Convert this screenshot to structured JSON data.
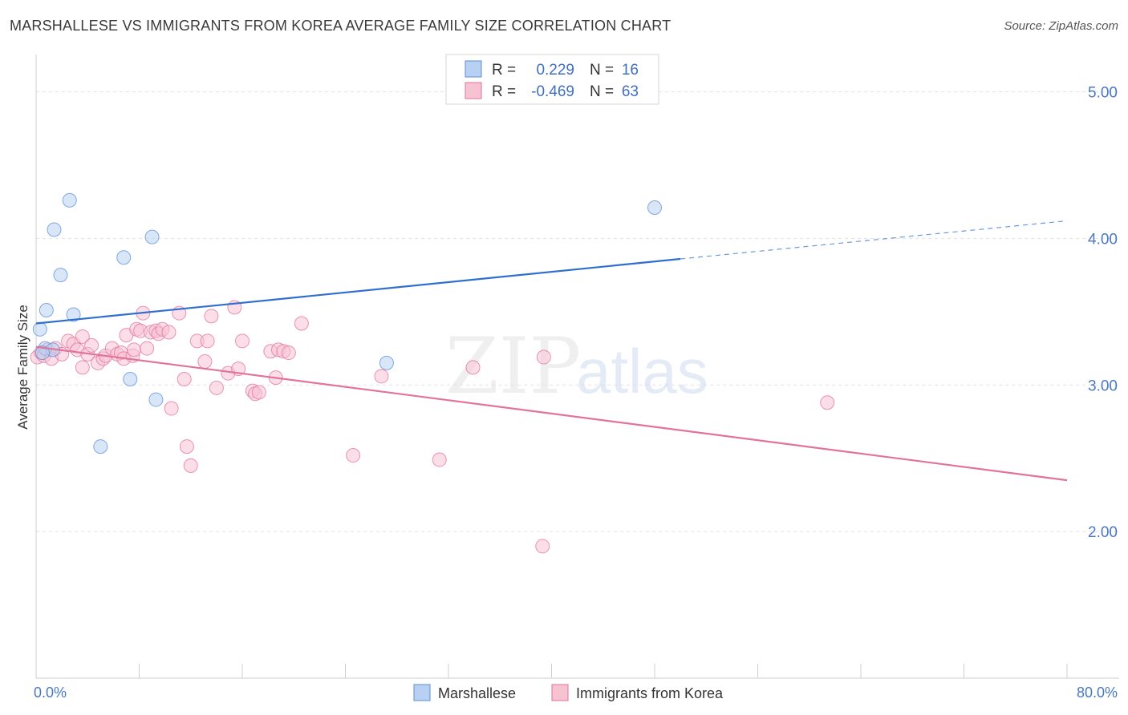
{
  "header": {
    "title": "MARSHALLESE VS IMMIGRANTS FROM KOREA AVERAGE FAMILY SIZE CORRELATION CHART",
    "source": "Source: ZipAtlas.com"
  },
  "watermark": {
    "zip": "ZIP",
    "atlas": "atlas"
  },
  "chart_data": {
    "type": "scatter",
    "ylabel": "Average Family Size",
    "xlim": [
      0,
      80
    ],
    "ylim": [
      1.0,
      5.2
    ],
    "x_tick_labels": [
      {
        "value": 0,
        "label": "0.0%"
      },
      {
        "value": 80,
        "label": "80.0%"
      }
    ],
    "y_tick_labels": [
      {
        "value": 2.0,
        "label": "2.00"
      },
      {
        "value": 3.0,
        "label": "3.00"
      },
      {
        "value": 4.0,
        "label": "4.00"
      },
      {
        "value": 5.0,
        "label": "5.00"
      }
    ],
    "legend_stats": [
      {
        "r_label": "R =",
        "r_value": "0.229",
        "n_label": "N =",
        "n_value": "16",
        "color": "#5b8fd9",
        "fill": "#b8d1f3"
      },
      {
        "r_label": "R =",
        "r_value": "-0.469",
        "n_label": "N =",
        "n_value": "63",
        "color": "#e2739a",
        "fill": "#f7c3d3"
      }
    ],
    "series": [
      {
        "name": "Marshallese",
        "color": "#5b8fd9",
        "fill": "#b8d1f3",
        "trend": {
          "x0": 0,
          "y0": 3.42,
          "x1": 50,
          "y1": 3.86,
          "dash_x1": 80,
          "dash_y1": 4.12
        },
        "points": [
          [
            0.3,
            3.38
          ],
          [
            0.8,
            3.51
          ],
          [
            0.7,
            3.25
          ],
          [
            1.3,
            3.24
          ],
          [
            1.4,
            4.06
          ],
          [
            1.9,
            3.75
          ],
          [
            2.6,
            4.26
          ],
          [
            2.9,
            3.48
          ],
          [
            5.0,
            2.58
          ],
          [
            6.8,
            3.87
          ],
          [
            7.3,
            3.04
          ],
          [
            9.0,
            4.01
          ],
          [
            9.3,
            2.9
          ],
          [
            27.2,
            3.15
          ],
          [
            48.0,
            4.21
          ],
          [
            0.5,
            3.22
          ]
        ]
      },
      {
        "name": "Immigrants from Korea",
        "color": "#e2739a",
        "fill": "#f7c3d3",
        "trend": {
          "x0": 0,
          "y0": 3.26,
          "x1": 80,
          "y1": 2.35
        },
        "points": [
          [
            0.1,
            3.19
          ],
          [
            0.4,
            3.22
          ],
          [
            0.6,
            3.2
          ],
          [
            0.9,
            3.24
          ],
          [
            1.2,
            3.18
          ],
          [
            1.5,
            3.25
          ],
          [
            2.0,
            3.21
          ],
          [
            2.5,
            3.3
          ],
          [
            2.9,
            3.28
          ],
          [
            3.2,
            3.24
          ],
          [
            3.6,
            3.33
          ],
          [
            3.6,
            3.12
          ],
          [
            4.0,
            3.21
          ],
          [
            4.3,
            3.27
          ],
          [
            4.8,
            3.15
          ],
          [
            5.2,
            3.18
          ],
          [
            5.4,
            3.2
          ],
          [
            5.9,
            3.25
          ],
          [
            6.3,
            3.21
          ],
          [
            6.6,
            3.22
          ],
          [
            6.8,
            3.18
          ],
          [
            7.0,
            3.34
          ],
          [
            7.5,
            3.2
          ],
          [
            7.6,
            3.24
          ],
          [
            7.8,
            3.38
          ],
          [
            8.1,
            3.37
          ],
          [
            8.3,
            3.49
          ],
          [
            8.6,
            3.25
          ],
          [
            8.9,
            3.36
          ],
          [
            9.3,
            3.37
          ],
          [
            9.5,
            3.35
          ],
          [
            9.8,
            3.38
          ],
          [
            10.3,
            3.36
          ],
          [
            10.5,
            2.84
          ],
          [
            11.1,
            3.49
          ],
          [
            11.5,
            3.04
          ],
          [
            11.7,
            2.58
          ],
          [
            12.0,
            2.45
          ],
          [
            12.5,
            3.3
          ],
          [
            13.1,
            3.16
          ],
          [
            13.3,
            3.3
          ],
          [
            13.6,
            3.47
          ],
          [
            14.0,
            2.98
          ],
          [
            14.9,
            3.08
          ],
          [
            15.4,
            3.53
          ],
          [
            15.7,
            3.11
          ],
          [
            16.0,
            3.3
          ],
          [
            16.8,
            2.96
          ],
          [
            17.0,
            2.94
          ],
          [
            17.3,
            2.95
          ],
          [
            18.2,
            3.23
          ],
          [
            18.6,
            3.05
          ],
          [
            18.8,
            3.24
          ],
          [
            19.2,
            3.23
          ],
          [
            19.6,
            3.22
          ],
          [
            20.6,
            3.42
          ],
          [
            24.6,
            2.52
          ],
          [
            26.8,
            3.06
          ],
          [
            31.3,
            2.49
          ],
          [
            33.9,
            3.12
          ],
          [
            39.3,
            1.9
          ],
          [
            39.4,
            3.19
          ],
          [
            61.4,
            2.88
          ]
        ]
      }
    ]
  }
}
